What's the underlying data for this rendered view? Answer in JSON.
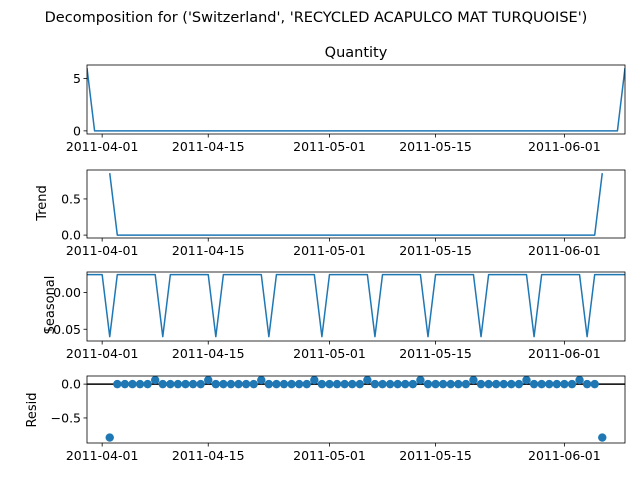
{
  "suptitle": "Decomposition for ('Switzerland', 'RECYCLED ACAPULCO MAT TURQUOISE')",
  "colors": {
    "series": "#1f77b4",
    "axis": "#000000",
    "zero_line": "#000000"
  },
  "chart_data": [
    {
      "type": "line",
      "title": "Quantity",
      "ylabel": "",
      "xlabel": "",
      "x_ticks": [
        "2011-04-01",
        "2011-04-15",
        "2011-05-01",
        "2011-05-15",
        "2011-06-01"
      ],
      "xlim": [
        "2011-03-30",
        "2011-06-09"
      ],
      "y_ticks": [
        0,
        5
      ],
      "ylim": [
        -0.3,
        6.3
      ],
      "x": [
        "2011-03-30",
        "2011-03-31",
        "2011-06-08",
        "2011-06-09"
      ],
      "values": [
        6,
        0,
        0,
        6
      ]
    },
    {
      "type": "line",
      "title": "",
      "ylabel": "Trend",
      "xlabel": "",
      "x_ticks": [
        "2011-04-01",
        "2011-04-15",
        "2011-05-01",
        "2011-05-15",
        "2011-06-01"
      ],
      "xlim": [
        "2011-03-30",
        "2011-06-09"
      ],
      "y_ticks": [
        0.0,
        0.5
      ],
      "y_tick_labels": [
        "0.0",
        "0.5"
      ],
      "ylim": [
        -0.04,
        0.9
      ],
      "x": [
        "2011-04-02",
        "2011-04-03",
        "2011-06-05",
        "2011-06-06"
      ],
      "values": [
        0.857,
        0,
        0,
        0.857
      ]
    },
    {
      "type": "line",
      "title": "",
      "ylabel": "Seasonal",
      "xlabel": "",
      "x_ticks": [
        "2011-04-01",
        "2011-04-15",
        "2011-05-01",
        "2011-05-15",
        "2011-06-01"
      ],
      "xlim": [
        "2011-03-30",
        "2011-06-09"
      ],
      "y_ticks": [
        -0.05,
        0.0
      ],
      "y_tick_labels": [
        "−0.05",
        "0.00"
      ],
      "ylim": [
        -0.066,
        0.028
      ],
      "start": "2011-03-30",
      "end": "2011-06-09",
      "weekly_pattern": [
        0.0245,
        0.0245,
        0.0245,
        -0.06,
        0.0245,
        0.0245,
        0.0245
      ]
    },
    {
      "type": "scatter",
      "title": "",
      "ylabel": "Resid",
      "xlabel": "",
      "x_ticks": [
        "2011-04-01",
        "2011-04-15",
        "2011-05-01",
        "2011-05-15",
        "2011-06-01"
      ],
      "xlim": [
        "2011-03-30",
        "2011-06-09"
      ],
      "y_ticks": [
        -0.5,
        0.0
      ],
      "y_tick_labels": [
        "−0.5",
        "0.0"
      ],
      "ylim": [
        -0.87,
        0.12
      ],
      "start": "2011-04-02",
      "end": "2011-06-06",
      "weekly_pattern": [
        0.0,
        0.0,
        0.0,
        0.0,
        0.0,
        0.0,
        0.06
      ],
      "outliers": [
        {
          "x": "2011-04-02",
          "y": -0.79
        },
        {
          "x": "2011-06-06",
          "y": -0.79
        }
      ],
      "zero_line": true
    }
  ]
}
